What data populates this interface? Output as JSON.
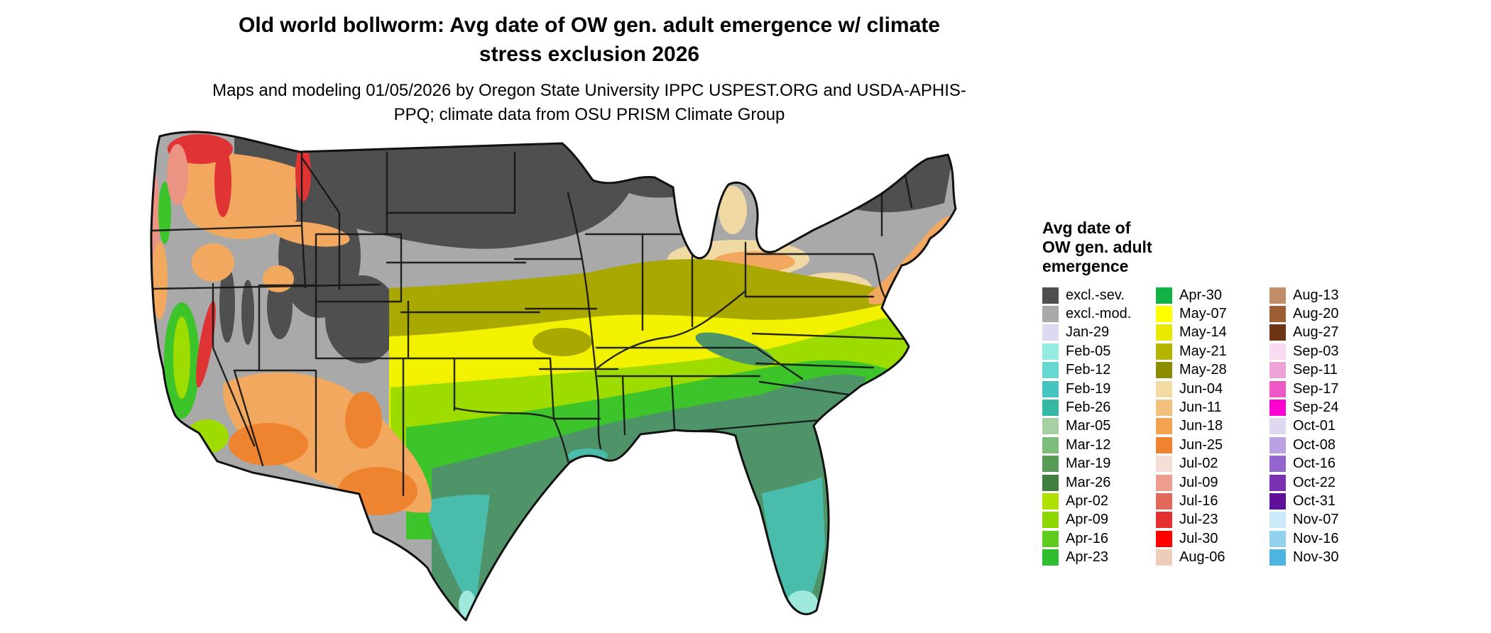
{
  "header": {
    "title": "Old world bollworm: Avg date of OW gen. adult emergence w/ climate stress exclusion 2026",
    "subtitle": "Maps and modeling 01/05/2026 by Oregon State University IPPC USPEST.ORG and USDA-APHIS-PPQ; climate data from OSU PRISM Climate Group"
  },
  "legend": {
    "title_lines": [
      "Avg date of",
      "OW gen. adult",
      "emergence"
    ],
    "columns": [
      {
        "entries": [
          {
            "label": "excl.-sev.",
            "color": "#4f4f4f"
          },
          {
            "label": "excl.-mod.",
            "color": "#a9a9a9"
          },
          {
            "label": "Jan-29",
            "color": "#dcd9f2"
          },
          {
            "label": "Feb-05",
            "color": "#93ecdf"
          },
          {
            "label": "Feb-12",
            "color": "#66d8cf"
          },
          {
            "label": "Feb-19",
            "color": "#45c4c0"
          },
          {
            "label": "Feb-26",
            "color": "#35b8a4"
          },
          {
            "label": "Mar-05",
            "color": "#a6cfa4"
          },
          {
            "label": "Mar-12",
            "color": "#7cbd7c"
          },
          {
            "label": "Mar-19",
            "color": "#579b57"
          },
          {
            "label": "Mar-26",
            "color": "#417f41"
          },
          {
            "label": "Apr-02",
            "color": "#b0e000"
          },
          {
            "label": "Apr-09",
            "color": "#8ed600"
          },
          {
            "label": "Apr-16",
            "color": "#5ecb1e"
          },
          {
            "label": "Apr-23",
            "color": "#2fbe2f"
          }
        ]
      },
      {
        "entries": [
          {
            "label": "Apr-30",
            "color": "#12b244"
          },
          {
            "label": "May-07",
            "color": "#ffff00"
          },
          {
            "label": "May-14",
            "color": "#e8e800"
          },
          {
            "label": "May-21",
            "color": "#b5b500"
          },
          {
            "label": "May-28",
            "color": "#8c8c00"
          },
          {
            "label": "Jun-04",
            "color": "#f2dba2"
          },
          {
            "label": "Jun-11",
            "color": "#f3c07e"
          },
          {
            "label": "Jun-18",
            "color": "#f3a24f"
          },
          {
            "label": "Jun-25",
            "color": "#ef8330"
          },
          {
            "label": "Jul-02",
            "color": "#f6ded6"
          },
          {
            "label": "Jul-09",
            "color": "#ed9c8d"
          },
          {
            "label": "Jul-16",
            "color": "#e2685c"
          },
          {
            "label": "Jul-23",
            "color": "#e62f2f"
          },
          {
            "label": "Jul-30",
            "color": "#fe0000"
          },
          {
            "label": "Aug-06",
            "color": "#edccba"
          }
        ]
      },
      {
        "entries": [
          {
            "label": "Aug-13",
            "color": "#c28e67"
          },
          {
            "label": "Aug-20",
            "color": "#9d5e34"
          },
          {
            "label": "Aug-27",
            "color": "#6d3514"
          },
          {
            "label": "Sep-03",
            "color": "#f8dbf0"
          },
          {
            "label": "Sep-11",
            "color": "#efa2d8"
          },
          {
            "label": "Sep-17",
            "color": "#ef59c5"
          },
          {
            "label": "Sep-24",
            "color": "#ff00d2"
          },
          {
            "label": "Oct-01",
            "color": "#e0d8f1"
          },
          {
            "label": "Oct-08",
            "color": "#baa2e2"
          },
          {
            "label": "Oct-16",
            "color": "#9465cf"
          },
          {
            "label": "Oct-22",
            "color": "#7c30b2"
          },
          {
            "label": "Oct-31",
            "color": "#5e1098"
          },
          {
            "label": "Nov-07",
            "color": "#cbe9f8"
          },
          {
            "label": "Nov-16",
            "color": "#92d2ef"
          },
          {
            "label": "Nov-30",
            "color": "#4fb3e2"
          }
        ]
      }
    ]
  },
  "map": {
    "description": "Contiguous United States choropleth of average Old World bollworm overwintered-generation adult emergence date, with climate stress exclusion zones",
    "colors": {
      "excl_sev": "#4f4f4f",
      "excl_mod": "#a9a9a9",
      "olive": "#a8a800",
      "yellow": "#f2f200",
      "yellowgreen": "#9edc00",
      "green": "#3cc42a",
      "seagreen": "#4f9468",
      "teal": "#49bcab",
      "cyan": "#9fe8dc",
      "wheat": "#f1d9a4",
      "orange": "#f2a95f",
      "deeporange": "#ee8430",
      "red": "#e03434",
      "salmon": "#ec9484",
      "border": "#111111"
    }
  }
}
